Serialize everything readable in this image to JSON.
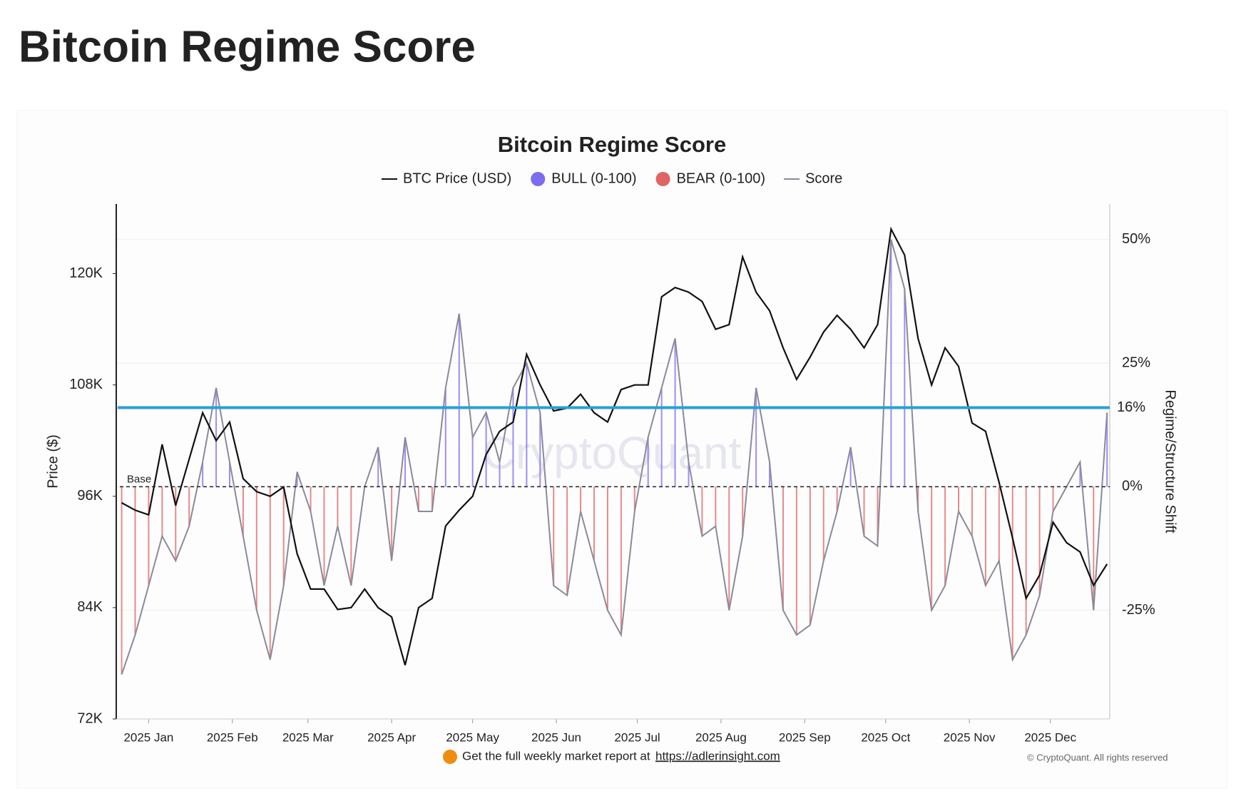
{
  "page_title": "Bitcoin Regime Score",
  "chart_data": {
    "type": "line",
    "title": "Bitcoin Regime Score",
    "x": [
      -10,
      -5,
      0,
      5,
      10,
      15,
      20,
      25,
      30,
      35,
      40,
      45,
      50,
      55,
      60,
      65,
      70,
      75,
      80,
      85,
      90,
      95,
      100,
      105,
      110,
      115,
      120,
      125,
      130,
      135,
      140,
      145,
      150,
      155,
      160,
      165,
      170,
      175,
      180,
      185,
      190,
      195,
      200,
      205,
      210,
      215,
      220,
      225,
      230,
      235,
      240,
      245,
      250,
      255,
      260,
      265,
      270,
      275,
      280,
      285,
      290,
      295,
      300,
      305,
      310,
      315,
      320,
      325,
      330,
      335,
      340,
      345,
      350,
      355
    ],
    "xlim": [
      -12,
      356
    ],
    "xticks": [
      {
        "value": 0,
        "label": "2025 Jan"
      },
      {
        "value": 31,
        "label": "2025 Feb"
      },
      {
        "value": 59,
        "label": "2025 Mar"
      },
      {
        "value": 90,
        "label": "2025 Apr"
      },
      {
        "value": 120,
        "label": "2025 May"
      },
      {
        "value": 151,
        "label": "2025 Jun"
      },
      {
        "value": 181,
        "label": "2025 Jul"
      },
      {
        "value": 212,
        "label": "2025 Aug"
      },
      {
        "value": 243,
        "label": "2025 Sep"
      },
      {
        "value": 273,
        "label": "2025 Oct"
      },
      {
        "value": 304,
        "label": "2025 Nov"
      },
      {
        "value": 334,
        "label": "2025 Dec"
      }
    ],
    "ylabel": "Price ($)",
    "ylim": [
      72000,
      127500
    ],
    "yticks": [
      {
        "value": 72000,
        "label": "72K"
      },
      {
        "value": 84000,
        "label": "84K"
      },
      {
        "value": 96000,
        "label": "96K"
      },
      {
        "value": 108000,
        "label": "108K"
      },
      {
        "value": 120000,
        "label": "120K"
      }
    ],
    "y2label": "Regime/Structure Shift",
    "y2lim": [
      -47,
      57.2
    ],
    "y2ticks": [
      {
        "value": -25,
        "label": "-25%"
      },
      {
        "value": 0,
        "label": "0%"
      },
      {
        "value": 25,
        "label": "25%"
      },
      {
        "value": 50,
        "label": "50%"
      }
    ],
    "grid": true,
    "series": [
      {
        "name": "BTC Price (USD)",
        "color": "#111111",
        "values": [
          95300,
          94500,
          94000,
          101600,
          95000,
          100000,
          105000,
          102000,
          104000,
          97900,
          96500,
          96000,
          97000,
          89800,
          86000,
          86000,
          83800,
          84000,
          86000,
          84000,
          83000,
          77800,
          84000,
          85000,
          92800,
          94500,
          96000,
          100500,
          103000,
          104000,
          111300,
          108000,
          105200,
          105500,
          107000,
          105000,
          104000,
          107500,
          108000,
          108000,
          117500,
          118500,
          118000,
          117000,
          114000,
          114500,
          121800,
          118000,
          116000,
          112000,
          108600,
          111000,
          113700,
          115500,
          114000,
          112000,
          114500,
          124800,
          122000,
          113000,
          108000,
          112000,
          110000,
          103900,
          103000,
          97500,
          91500,
          85000,
          87500,
          93200,
          91000,
          90000,
          86400,
          88700
        ]
      },
      {
        "name": "Score",
        "color": "#8a8a9a",
        "axis": "y2",
        "values": [
          -38,
          -30,
          -20,
          -10,
          -15,
          -8,
          5,
          20,
          5,
          -10,
          -25,
          -35,
          -20,
          3,
          -5,
          -20,
          -8,
          -20,
          0,
          8,
          -15,
          10,
          -5,
          -5,
          20,
          35,
          10,
          15,
          5,
          20,
          25,
          15,
          -20,
          -22,
          -5,
          -15,
          -25,
          -30,
          -5,
          10,
          20,
          30,
          5,
          -10,
          -8,
          -25,
          -10,
          20,
          5,
          -25,
          -30,
          -28,
          -15,
          -5,
          8,
          -10,
          -12,
          50,
          40,
          -5,
          -25,
          -20,
          -5,
          -10,
          -20,
          -15,
          -35,
          -30,
          -22,
          -5,
          0,
          5,
          -25,
          15
        ]
      }
    ],
    "fills": [
      {
        "name": "BULL (0-100)",
        "color": "#7b6cf0"
      },
      {
        "name": "BEAR (0-100)",
        "color": "#e06464"
      }
    ],
    "annotations": [
      {
        "value": 0,
        "label": "Base",
        "axis": "y2"
      },
      {
        "value": 16,
        "label": "16%",
        "axis": "y2",
        "color": "#2a9fd6"
      }
    ],
    "watermark": "CryptoQuant",
    "footer": {
      "text": "Get the full weekly market report at",
      "link": "https://adlerinsight.com"
    },
    "copyright": "© CryptoQuant. All rights reserved"
  }
}
